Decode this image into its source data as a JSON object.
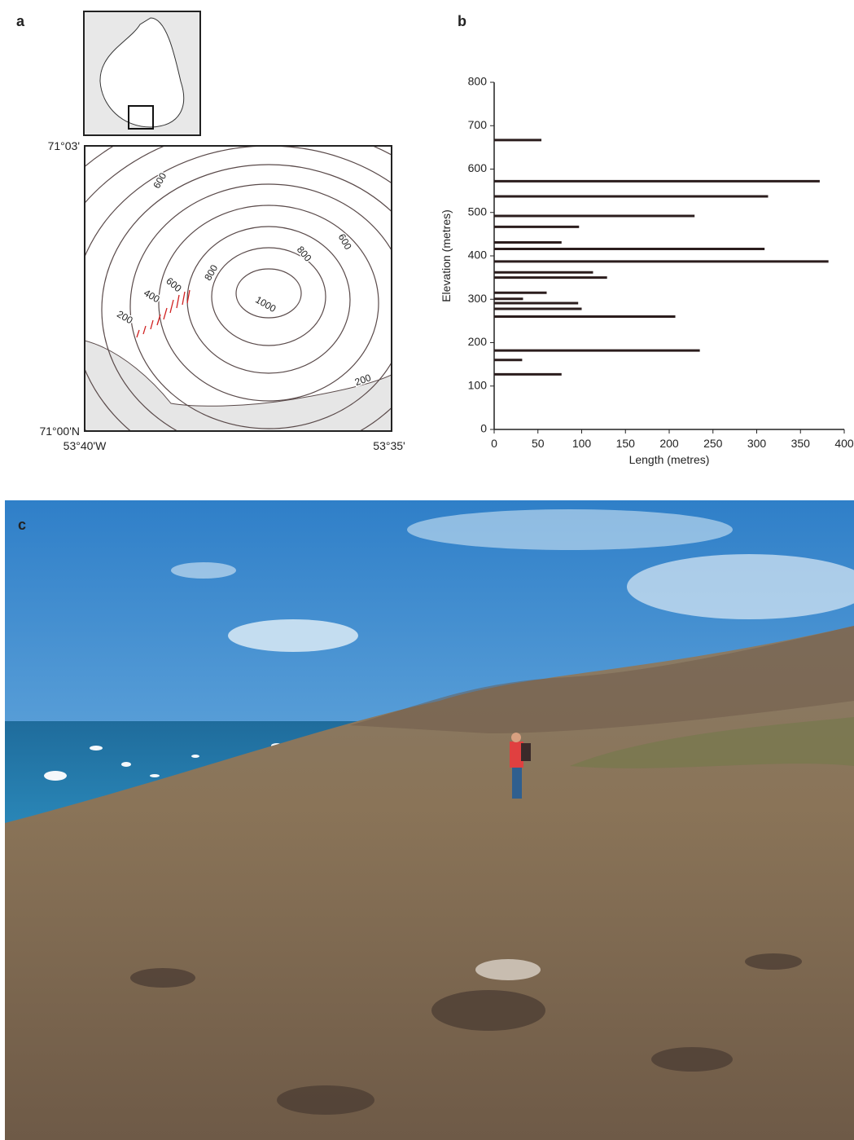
{
  "panels": {
    "a": "a",
    "b": "b",
    "c": "c"
  },
  "map": {
    "lat_top": "71°03'",
    "lat_bottom": "71°00'N",
    "lon_left": "53°40'W",
    "lon_right": "53°35'",
    "contour_labels": [
      "600",
      "600",
      "800",
      "800",
      "600",
      "400",
      "1000",
      "200",
      "200"
    ]
  },
  "chart_data": {
    "type": "hbar",
    "xlabel": "Length (metres)",
    "ylabel": "Elevation (metres)",
    "color": "#2b1d1d",
    "y": [
      667,
      572,
      537,
      492,
      467,
      431,
      416,
      387,
      362,
      350,
      315,
      301,
      291,
      278,
      260,
      182,
      160,
      127
    ],
    "values": [
      54,
      372,
      313,
      229,
      97,
      77,
      309,
      382,
      113,
      129,
      60,
      33,
      96,
      100,
      207,
      235,
      32,
      77
    ],
    "xlim": [
      0,
      400
    ],
    "ylim": [
      0,
      800
    ],
    "xticks": [
      0,
      50,
      100,
      150,
      200,
      250,
      300,
      350,
      400
    ],
    "yticks": [
      0,
      100,
      200,
      300,
      400,
      500,
      600,
      700,
      800
    ]
  }
}
